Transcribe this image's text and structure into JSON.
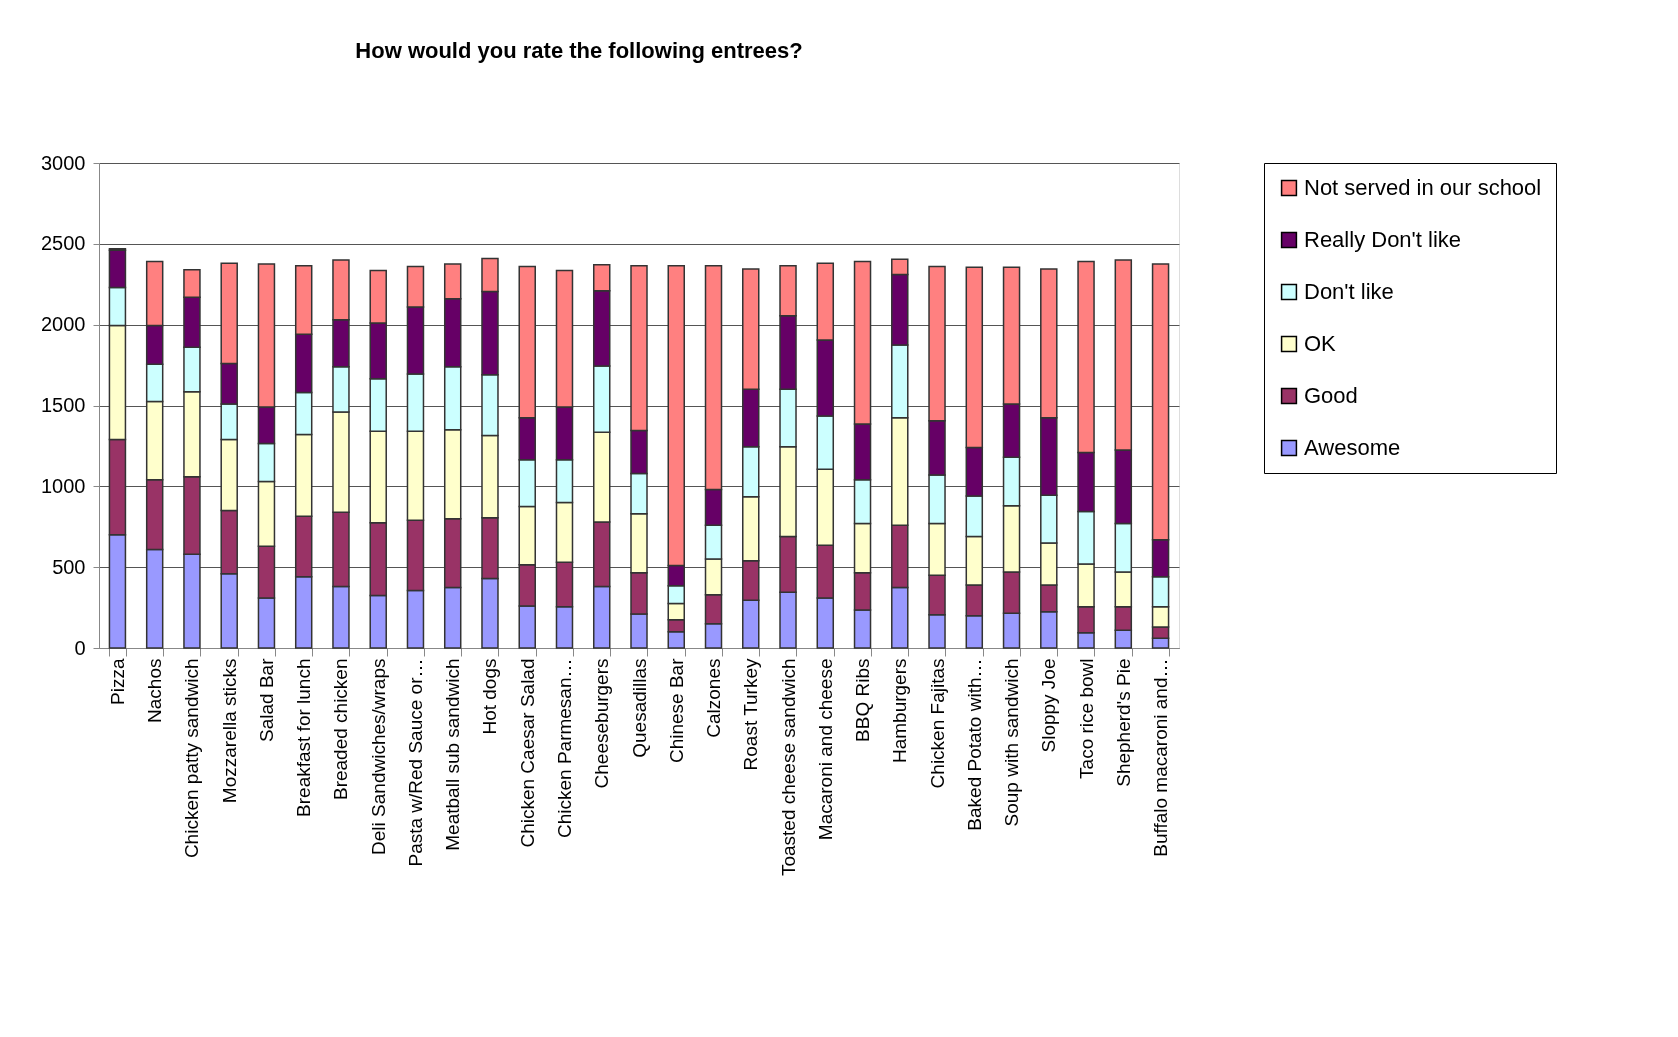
{
  "chart_data": {
    "type": "bar",
    "stacked": true,
    "title": "How would you rate the following entrees?",
    "categories": [
      "Pizza",
      "Nachos",
      "Chicken patty sandwich",
      "Mozzarella sticks",
      "Salad Bar",
      "Breakfast for lunch",
      "Breaded chicken",
      "Deli Sandwiches/wraps",
      "Pasta w/Red Sauce or…",
      "Meatball sub sandwich",
      "Hot dogs",
      "Chicken Caesar Salad",
      "Chicken Parmesan…",
      "Cheeseburgers",
      "Quesadillas",
      "Chinese Bar",
      "Calzones",
      "Roast Turkey",
      "Toasted cheese sandwich",
      "Macaroni and cheese",
      "BBQ Ribs",
      "Hamburgers",
      "Chicken Fajitas",
      "Baked Potato with…",
      "Soup with sandwich",
      "Sloppy Joe",
      "Taco rice bowl",
      "Shepherd's Pie",
      "Buffalo macaroni and…"
    ],
    "series": [
      {
        "name": "Awesome",
        "color": "#9999ff",
        "values": [
          700,
          610,
          580,
          460,
          310,
          440,
          380,
          325,
          355,
          375,
          430,
          260,
          255,
          380,
          210,
          100,
          150,
          295,
          345,
          310,
          235,
          375,
          205,
          200,
          215,
          225,
          95,
          110,
          60
        ]
      },
      {
        "name": "Good",
        "color": "#993366",
        "values": [
          590,
          430,
          480,
          390,
          320,
          375,
          460,
          450,
          435,
          425,
          375,
          255,
          275,
          400,
          255,
          75,
          180,
          245,
          345,
          325,
          230,
          385,
          245,
          190,
          255,
          165,
          160,
          145,
          70
        ]
      },
      {
        "name": "OK",
        "color": "#ffffcc",
        "values": [
          705,
          485,
          525,
          440,
          400,
          505,
          620,
          565,
          550,
          550,
          510,
          360,
          370,
          555,
          365,
          100,
          220,
          395,
          555,
          470,
          305,
          665,
          320,
          300,
          410,
          260,
          265,
          215,
          125
        ]
      },
      {
        "name": "Don't like",
        "color": "#ccffff",
        "values": [
          235,
          230,
          275,
          220,
          235,
          260,
          280,
          325,
          355,
          390,
          375,
          290,
          265,
          410,
          250,
          110,
          210,
          310,
          355,
          330,
          270,
          450,
          300,
          250,
          300,
          295,
          325,
          300,
          185
        ]
      },
      {
        "name": "Really Don't like",
        "color": "#660066",
        "values": [
          230,
          240,
          310,
          250,
          225,
          360,
          290,
          345,
          415,
          420,
          515,
          260,
          325,
          465,
          265,
          125,
          220,
          355,
          455,
          470,
          345,
          435,
          335,
          300,
          330,
          480,
          365,
          455,
          230
        ]
      },
      {
        "name": "Not served in our school",
        "color": "#ff8080",
        "values": [
          10,
          395,
          170,
          620,
          885,
          425,
          370,
          325,
          250,
          215,
          205,
          935,
          845,
          160,
          1020,
          1855,
          1385,
          745,
          310,
          475,
          1005,
          95,
          955,
          1115,
          845,
          920,
          1180,
          1175,
          1705
        ]
      }
    ],
    "ylim": [
      0,
      3000
    ],
    "yticks": [
      0,
      500,
      1000,
      1500,
      2000,
      2500,
      3000
    ],
    "grid": "y",
    "legend": "right"
  }
}
